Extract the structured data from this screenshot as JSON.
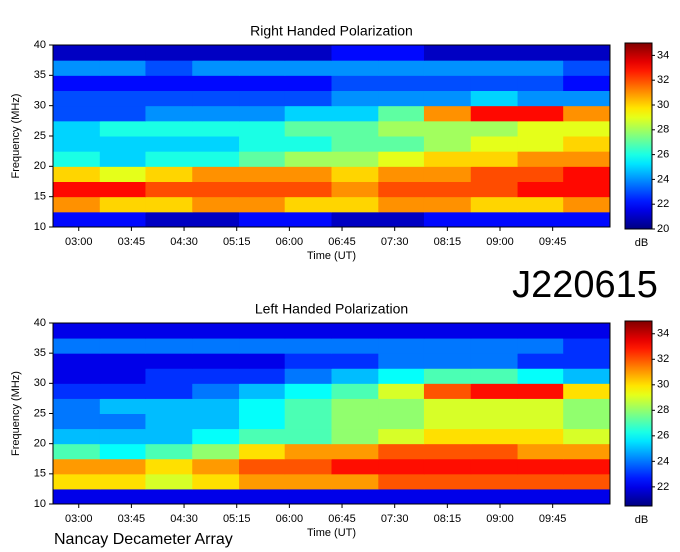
{
  "label": "J220615",
  "footer": "Nancay Decameter Array",
  "chart_data": [
    {
      "type": "heatmap",
      "title": "Right Handed Polarization",
      "xlabel": "Time (UT)",
      "ylabel": "Frequency (MHz)",
      "xlim": [
        158,
        634
      ],
      "ylim": [
        10,
        40
      ],
      "xticks": [
        {
          "value": 180,
          "label": "03:00"
        },
        {
          "value": 225,
          "label": "03:45"
        },
        {
          "value": 270,
          "label": "04:30"
        },
        {
          "value": 315,
          "label": "05:15"
        },
        {
          "value": 360,
          "label": "06:00"
        },
        {
          "value": 405,
          "label": "06:45"
        },
        {
          "value": 450,
          "label": "07:30"
        },
        {
          "value": 495,
          "label": "08:15"
        },
        {
          "value": 540,
          "label": "09:00"
        },
        {
          "value": 585,
          "label": "09:45"
        }
      ],
      "yticks": [
        10,
        15,
        20,
        25,
        30,
        35,
        40
      ],
      "xbins": [
        158,
        198,
        237,
        277,
        317,
        356,
        396,
        436,
        475,
        515,
        555,
        594,
        634
      ],
      "ybins": [
        10,
        12.5,
        15,
        17.5,
        20,
        22.5,
        25,
        27.5,
        30,
        32.5,
        35,
        37.5,
        40
      ],
      "z": [
        [
          22,
          22,
          21,
          21,
          22,
          22,
          21,
          21,
          22,
          22,
          22,
          22
        ],
        [
          31,
          30,
          30,
          31,
          31,
          30,
          30,
          31,
          31,
          30,
          30,
          31
        ],
        [
          33,
          33,
          32,
          32,
          32,
          32,
          31,
          32,
          32,
          32,
          33,
          33
        ],
        [
          30,
          29,
          30,
          31,
          31,
          31,
          30,
          31,
          31,
          32,
          32,
          33
        ],
        [
          26,
          25,
          26,
          26,
          27,
          28,
          28,
          29,
          30,
          30,
          31,
          31
        ],
        [
          25,
          25,
          25,
          25,
          26,
          26,
          27,
          27,
          28,
          29,
          29,
          30
        ],
        [
          25,
          26,
          26,
          26,
          26,
          27,
          27,
          28,
          28,
          28,
          29,
          29
        ],
        [
          23,
          23,
          24,
          24,
          24,
          25,
          25,
          27,
          31,
          33,
          33,
          31
        ],
        [
          23,
          23,
          23,
          23,
          23,
          23,
          24,
          24,
          24,
          25,
          24,
          24
        ],
        [
          22,
          22,
          22,
          22,
          22,
          22,
          23,
          23,
          23,
          23,
          23,
          22
        ],
        [
          24,
          24,
          23,
          24,
          24,
          24,
          24,
          24,
          24,
          24,
          24,
          23
        ],
        [
          21,
          21,
          21,
          21,
          21,
          21,
          22,
          22,
          21,
          21,
          21,
          21
        ]
      ],
      "zlim": [
        20,
        35
      ],
      "zticks": [
        20,
        22,
        24,
        26,
        28,
        30,
        32,
        34
      ],
      "colorbar_label": "dB",
      "colormap": "jet"
    },
    {
      "type": "heatmap",
      "title": "Left Handed Polarization",
      "xlabel": "Time (UT)",
      "ylabel": "Frequency (MHz)",
      "xlim": [
        158,
        634
      ],
      "ylim": [
        10,
        40
      ],
      "xticks": [
        {
          "value": 180,
          "label": "03:00"
        },
        {
          "value": 225,
          "label": "03:45"
        },
        {
          "value": 270,
          "label": "04:30"
        },
        {
          "value": 315,
          "label": "05:15"
        },
        {
          "value": 360,
          "label": "06:00"
        },
        {
          "value": 405,
          "label": "06:45"
        },
        {
          "value": 450,
          "label": "07:30"
        },
        {
          "value": 495,
          "label": "08:15"
        },
        {
          "value": 540,
          "label": "09:00"
        },
        {
          "value": 585,
          "label": "09:45"
        }
      ],
      "yticks": [
        10,
        15,
        20,
        25,
        30,
        35,
        40
      ],
      "xbins": [
        158,
        198,
        237,
        277,
        317,
        356,
        396,
        436,
        475,
        515,
        555,
        594,
        634
      ],
      "ybins": [
        10,
        12.5,
        15,
        17.5,
        20,
        22.5,
        25,
        27.5,
        30,
        32.5,
        35,
        37.5,
        40
      ],
      "z": [
        [
          22,
          22,
          22,
          22,
          22,
          22,
          22,
          22,
          22,
          22,
          22,
          22
        ],
        [
          30,
          30,
          29,
          30,
          31,
          31,
          31,
          32,
          32,
          32,
          32,
          32
        ],
        [
          31,
          31,
          30,
          31,
          32,
          32,
          33,
          33,
          33,
          33,
          33,
          33
        ],
        [
          27,
          26,
          27,
          28,
          30,
          31,
          31,
          32,
          32,
          32,
          31,
          31
        ],
        [
          25,
          25,
          25,
          26,
          27,
          27,
          28,
          29,
          30,
          30,
          30,
          29
        ],
        [
          24,
          24,
          25,
          25,
          26,
          27,
          28,
          28,
          29,
          29,
          29,
          28
        ],
        [
          24,
          25,
          25,
          25,
          26,
          27,
          28,
          28,
          29,
          29,
          29,
          28
        ],
        [
          23,
          23,
          23,
          24,
          25,
          26,
          27,
          29,
          32,
          33,
          33,
          30
        ],
        [
          22,
          22,
          23,
          23,
          23,
          24,
          25,
          26,
          27,
          27,
          26,
          25
        ],
        [
          22,
          22,
          22,
          22,
          22,
          23,
          23,
          24,
          24,
          24,
          23,
          23
        ],
        [
          24,
          24,
          24,
          24,
          24,
          24,
          24,
          24,
          24,
          24,
          24,
          23
        ],
        [
          22,
          22,
          22,
          22,
          22,
          22,
          22,
          22,
          22,
          22,
          22,
          22
        ]
      ],
      "zlim": [
        20.5,
        35
      ],
      "zticks": [
        22,
        24,
        26,
        28,
        30,
        32,
        34
      ],
      "colorbar_label": "dB",
      "colormap": "jet"
    }
  ]
}
